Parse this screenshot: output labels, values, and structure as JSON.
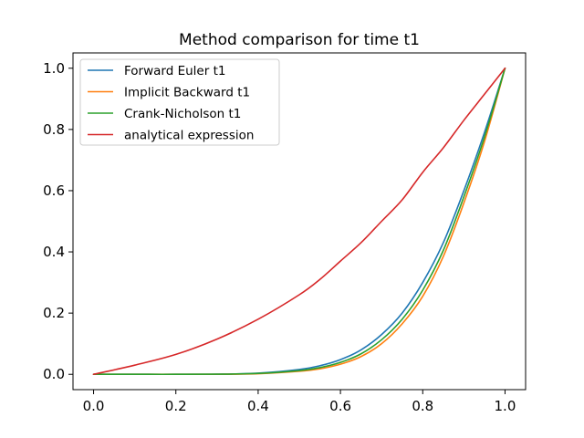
{
  "chart_data": {
    "type": "line",
    "title": "Method comparison for time t1",
    "xlabel": "",
    "ylabel": "",
    "xlim": [
      -0.05,
      1.05
    ],
    "ylim": [
      -0.05,
      1.05
    ],
    "xticks": [
      0.0,
      0.2,
      0.4,
      0.6,
      0.8,
      1.0
    ],
    "xtick_labels": [
      "0.0",
      "0.2",
      "0.4",
      "0.6",
      "0.8",
      "1.0"
    ],
    "yticks": [
      0.0,
      0.2,
      0.4,
      0.6,
      0.8,
      1.0
    ],
    "ytick_labels": [
      "0.0",
      "0.2",
      "0.4",
      "0.6",
      "0.8",
      "1.0"
    ],
    "grid": false,
    "legend_position": "upper-left",
    "x": [
      0.0,
      0.1,
      0.2,
      0.3,
      0.4,
      0.5,
      0.55,
      0.6,
      0.65,
      0.7,
      0.75,
      0.8,
      0.85,
      0.9,
      0.95,
      1.0
    ],
    "series": [
      {
        "name": "Forward Euler t1",
        "color": "#1f77b4",
        "values": [
          0.0,
          0.0,
          0.0,
          0.0005,
          0.004,
          0.016,
          0.028,
          0.048,
          0.08,
          0.13,
          0.2,
          0.3,
          0.43,
          0.6,
          0.79,
          1.0
        ]
      },
      {
        "name": "Implicit Backward t1",
        "color": "#ff7f0e",
        "values": [
          0.0,
          0.0,
          0.0,
          0.0003,
          0.002,
          0.01,
          0.018,
          0.033,
          0.058,
          0.1,
          0.165,
          0.255,
          0.385,
          0.56,
          0.76,
          1.0
        ]
      },
      {
        "name": "Crank-Nicholson t1",
        "color": "#2ca02c",
        "values": [
          0.0,
          0.0,
          0.0,
          0.0004,
          0.003,
          0.012,
          0.022,
          0.039,
          0.067,
          0.113,
          0.18,
          0.275,
          0.405,
          0.58,
          0.775,
          1.0
        ]
      },
      {
        "name": "analytical expression",
        "color": "#d62728",
        "values": [
          0.0,
          0.03,
          0.065,
          0.115,
          0.18,
          0.26,
          0.31,
          0.37,
          0.43,
          0.5,
          0.57,
          0.66,
          0.74,
          0.83,
          0.915,
          1.0
        ]
      }
    ]
  }
}
